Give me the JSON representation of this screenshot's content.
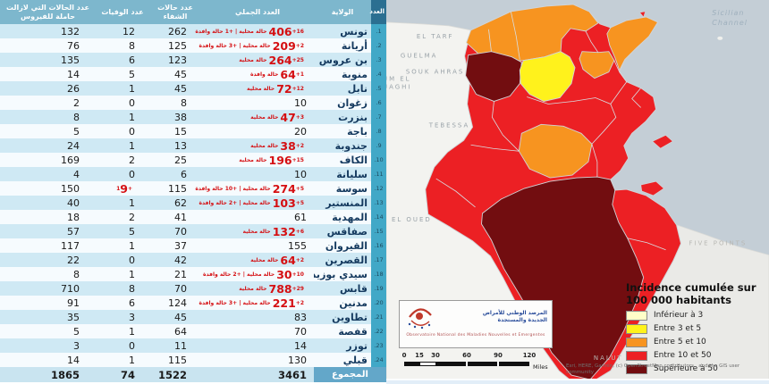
{
  "table": {
    "headers": {
      "rank": "العدد",
      "gov": "الولاية",
      "total": "العدد الجملي",
      "recovered": "عدد حالات الشفاء",
      "deaths": "عدد الوفيات",
      "active": "عدد الحالات التي لازالت حاملة للفيروس"
    },
    "rows": [
      {
        "n": "1.",
        "name": "تونس",
        "total": "406",
        "red": true,
        "note": "+16 حالة محلية | +1 حالة وافدة",
        "rec": "262",
        "deaths": "12",
        "active": "132"
      },
      {
        "n": "2.",
        "name": "أريانة",
        "total": "209",
        "red": true,
        "note": "+2 حالة محلية | +3 حالة وافدة",
        "rec": "125",
        "deaths": "8",
        "active": "76"
      },
      {
        "n": "3.",
        "name": "بن عروس",
        "total": "264",
        "red": true,
        "note": "+25 حالة محلية",
        "rec": "123",
        "deaths": "6",
        "active": "135"
      },
      {
        "n": "4.",
        "name": "منوبة",
        "total": "64",
        "red": true,
        "note": "+1 حالة وافدة",
        "rec": "45",
        "deaths": "5",
        "active": "14"
      },
      {
        "n": "5.",
        "name": "نابل",
        "total": "72",
        "red": true,
        "note": "+12 حالة محلية",
        "rec": "45",
        "deaths": "1",
        "active": "26"
      },
      {
        "n": "6.",
        "name": "زغوان",
        "total": "10",
        "red": false,
        "note": "",
        "rec": "8",
        "deaths": "0",
        "active": "2"
      },
      {
        "n": "7.",
        "name": "بنزرت",
        "total": "47",
        "red": true,
        "note": "+3 حالة محلية",
        "rec": "38",
        "deaths": "1",
        "active": "8"
      },
      {
        "n": "8.",
        "name": "باجة",
        "total": "20",
        "red": false,
        "note": "",
        "rec": "15",
        "deaths": "0",
        "active": "5"
      },
      {
        "n": "9.",
        "name": "جندوبة",
        "total": "38",
        "red": true,
        "note": "+2 حالة محلية",
        "rec": "13",
        "deaths": "1",
        "active": "24"
      },
      {
        "n": "10.",
        "name": "الكاف",
        "total": "196",
        "red": true,
        "note": "+15 حالة محلية",
        "rec": "25",
        "deaths": "2",
        "active": "169"
      },
      {
        "n": "11.",
        "name": "سليانة",
        "total": "10",
        "red": false,
        "note": "",
        "rec": "6",
        "deaths": "0",
        "active": "4"
      },
      {
        "n": "12.",
        "name": "سوسة",
        "total": "274",
        "red": true,
        "note": "+5 حالة محلية | +10 حالة وافدة",
        "rec": "115",
        "deaths": "9",
        "dred": true,
        "dnote": "+1",
        "active": "150"
      },
      {
        "n": "13.",
        "name": "المنستير",
        "total": "103",
        "red": true,
        "note": "+5 حالة محلية | +2 حالة وافدة",
        "rec": "62",
        "deaths": "1",
        "active": "40"
      },
      {
        "n": "14.",
        "name": "المهدية",
        "total": "61",
        "red": false,
        "note": "",
        "rec": "41",
        "deaths": "2",
        "active": "18"
      },
      {
        "n": "15.",
        "name": "صفاقس",
        "total": "132",
        "red": true,
        "note": "+6 حالة محلية",
        "rec": "70",
        "deaths": "5",
        "active": "57"
      },
      {
        "n": "16.",
        "name": "القيروان",
        "total": "155",
        "red": false,
        "note": "",
        "rec": "37",
        "deaths": "1",
        "active": "117"
      },
      {
        "n": "17.",
        "name": "القصرين",
        "total": "64",
        "red": true,
        "note": "+2 حالة محلية",
        "rec": "42",
        "deaths": "0",
        "active": "22"
      },
      {
        "n": "18.",
        "name": "سيدي بوزيد",
        "total": "30",
        "red": true,
        "note": "+10 حالة محلية | +2 حالة وافدة",
        "rec": "21",
        "deaths": "1",
        "active": "8"
      },
      {
        "n": "19.",
        "name": "قابس",
        "total": "788",
        "red": true,
        "note": "+29 حالة محلية",
        "rec": "70",
        "deaths": "8",
        "active": "710"
      },
      {
        "n": "20.",
        "name": "مدنين",
        "total": "221",
        "red": true,
        "note": "+2 حالة محلية | +3 حالة وافدة",
        "rec": "124",
        "deaths": "6",
        "active": "91"
      },
      {
        "n": "21.",
        "name": "تطاوين",
        "total": "83",
        "red": false,
        "note": "",
        "rec": "45",
        "deaths": "3",
        "active": "35"
      },
      {
        "n": "22.",
        "name": "قفصة",
        "total": "70",
        "red": false,
        "note": "",
        "rec": "64",
        "deaths": "1",
        "active": "5"
      },
      {
        "n": "23.",
        "name": "توزر",
        "total": "14",
        "red": false,
        "note": "",
        "rec": "11",
        "deaths": "0",
        "active": "3"
      },
      {
        "n": "24.",
        "name": "قبلي",
        "total": "130",
        "red": false,
        "note": "",
        "rec": "115",
        "deaths": "1",
        "active": "14"
      }
    ],
    "footer": {
      "label": "المجموع",
      "total": "3461",
      "rec": "1522",
      "deaths": "74",
      "active": "1865"
    }
  },
  "map": {
    "legend": {
      "title_line1": "Incidence cumulée sur",
      "title_line2": "100 000 habitants",
      "classes": [
        {
          "label": "Inférieur à 3",
          "color": "#FFFFC8"
        },
        {
          "label": "Entre 3 et 5",
          "color": "#FFF21C"
        },
        {
          "label": "Entre 5 et 10",
          "color": "#F79420"
        },
        {
          "label": "Entre 10 et 50",
          "color": "#EC2024"
        },
        {
          "label": "Supérieure à 50",
          "color": "#720D10"
        }
      ]
    },
    "levels": {
      "lt3": "#FFFFC8",
      "3to5": "#FFF21C",
      "5to10": "#F79420",
      "10to50": "#EC2024",
      "gt50": "#720D10"
    },
    "region_levels": {
      "coastal-central": "10to50",
      "bizerte-beja-jendouba": "5to10",
      "nabeul": "5to10",
      "zaghouan": "5to10",
      "kef": "gt50",
      "siliana": "3to5",
      "sidi-bouzid": "5to10",
      "gabes-kebili-tataouine": "gt50",
      "djerba": "10to50",
      "kerkennah": "10to50",
      "zembra": "10to50"
    },
    "labels": {
      "el_tarf": "EL TARF",
      "guelma": "GUELMA",
      "souk_ahras": "SOUK AHRAS",
      "oum_el": "UM EL",
      "bouaghi": "UAGHI",
      "tebessa": "TEBESSA",
      "el_oued": "EL OUED",
      "nalut": "NALUT",
      "five_points": "FIVE POINTS",
      "sicilian_1": "Sicilian",
      "sicilian_2": "Channel"
    },
    "scalebar": {
      "ticks": [
        "0",
        "15",
        "30",
        "60",
        "90",
        "120"
      ],
      "unit": "Miles"
    },
    "logo": {
      "arabic_line1": "المرصد الوطني للأمراض",
      "arabic_line2": "الجديدة والمستجدة",
      "french": "Observatoire National des Maladies Nouvelles et Emergentes"
    },
    "attribution": "Esri, HERE, Garmin, (c) OpenStreetMap contributors , and the GIS user community"
  }
}
